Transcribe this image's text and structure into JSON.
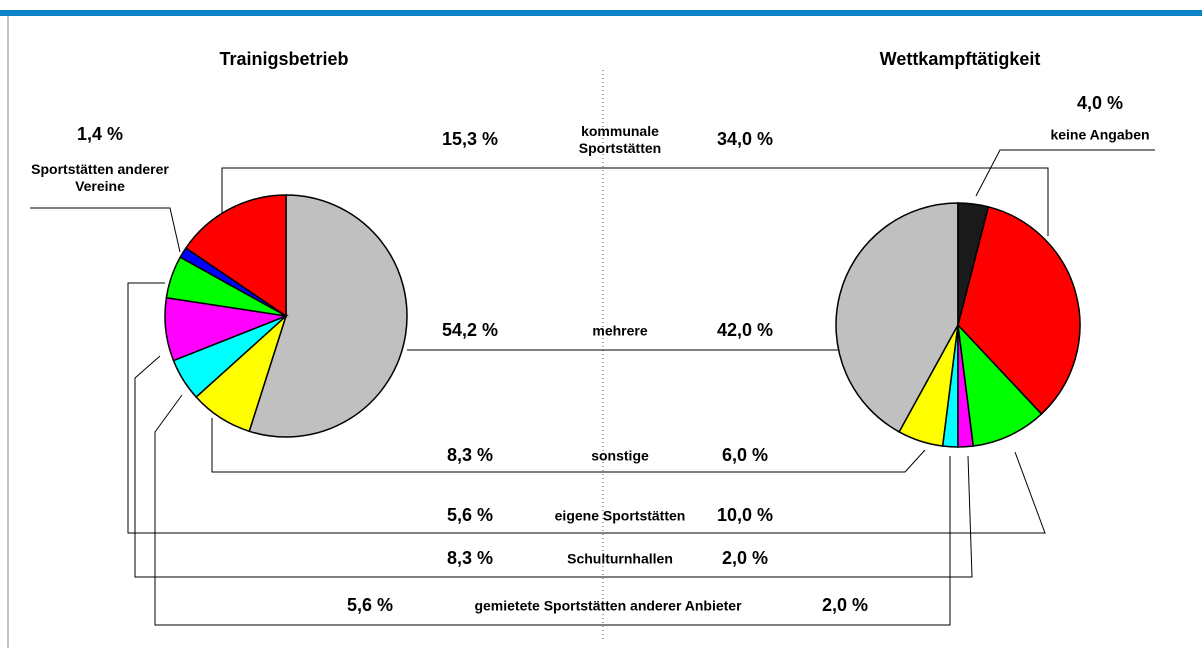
{
  "chart_data": {
    "type": "pie",
    "categories": [
      "mehrere",
      "sonstige",
      "gemietete Sportstätten anderer Anbieter",
      "Schulturnhallen",
      "eigene Sportstätten",
      "Sportstätten anderer Vereine",
      "kommunale Sportstätten",
      "keine Angaben"
    ],
    "colors": [
      "#c0c0c0",
      "#ffff00",
      "#00ffff",
      "#ff00ff",
      "#00ff00",
      "#0000ff",
      "#ff0000",
      "#1a1a1a"
    ],
    "series": [
      {
        "name": "Trainigsbetrieb",
        "direction": "clockwise",
        "values": [
          54.2,
          8.3,
          5.6,
          8.3,
          5.6,
          1.4,
          15.3,
          null
        ],
        "value_labels": [
          "54,2 %",
          "8,3 %",
          "5,6 %",
          "8,3 %",
          "5,6 %",
          "1,4 %",
          "15,3 %",
          null
        ]
      },
      {
        "name": "Wettkampftätigkeit",
        "direction": "counterclockwise",
        "values": [
          42.0,
          6.0,
          2.0,
          2.0,
          10.0,
          null,
          34.0,
          4.0
        ],
        "value_labels": [
          "42,0 %",
          "6,0 %",
          "2,0 %",
          "2,0 %",
          "10,0 %",
          null,
          "34,0 %",
          "4,0 %"
        ]
      }
    ]
  }
}
